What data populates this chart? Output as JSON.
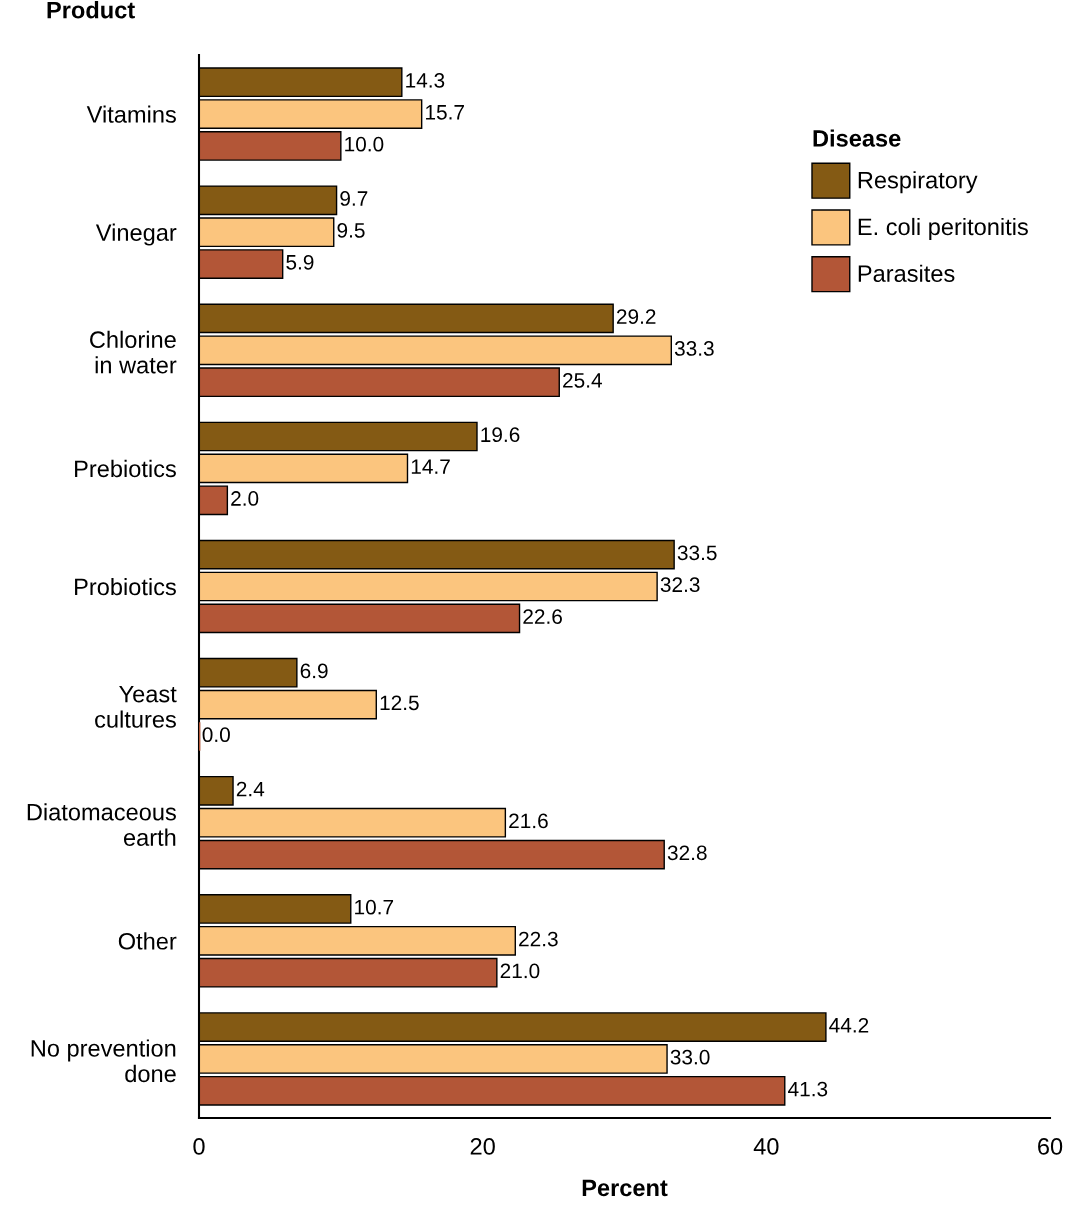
{
  "chart_data": {
    "type": "bar",
    "orientation": "horizontal",
    "ylabel": "Product",
    "xlabel": "Percent",
    "legend_title": "Disease",
    "legend": "top right",
    "grid": false,
    "categories": [
      "Vitamins",
      "Vinegar",
      "Chlorine\nin water",
      "Prebiotics",
      "Probiotics",
      "Yeast\ncultures",
      "Diatomaceous\nearth",
      "Other",
      "No prevention\ndone"
    ],
    "xlim": [
      0,
      60
    ],
    "xticks": [
      0,
      20,
      40,
      60
    ],
    "series": [
      {
        "name": "Respiratory",
        "color": "#845a14",
        "values": [
          14.3,
          9.7,
          29.2,
          19.6,
          33.5,
          6.9,
          2.4,
          10.7,
          44.2
        ],
        "value_labels": [
          "14.3",
          "9.7",
          "29.2",
          "19.6",
          "33.5",
          "6.9",
          "2.4",
          "10.7",
          "44.2"
        ]
      },
      {
        "name": "E. coli peritonitis",
        "color": "#fbc57e",
        "values": [
          15.7,
          9.5,
          33.3,
          14.7,
          32.3,
          12.5,
          21.6,
          22.3,
          33.0
        ],
        "value_labels": [
          "15.7",
          "9.5",
          "33.3",
          "14.7",
          "32.3",
          "12.5",
          "21.6",
          "22.3",
          "33.0"
        ]
      },
      {
        "name": "Parasites",
        "color": "#b35637",
        "values": [
          10.0,
          5.9,
          25.4,
          2.0,
          22.6,
          0.0,
          32.8,
          21.0,
          41.3
        ],
        "value_labels": [
          "10.0",
          "5.9",
          "25.4",
          "2.0",
          "22.6",
          "0.0",
          "32.8",
          "21.0",
          "41.3"
        ]
      }
    ]
  }
}
